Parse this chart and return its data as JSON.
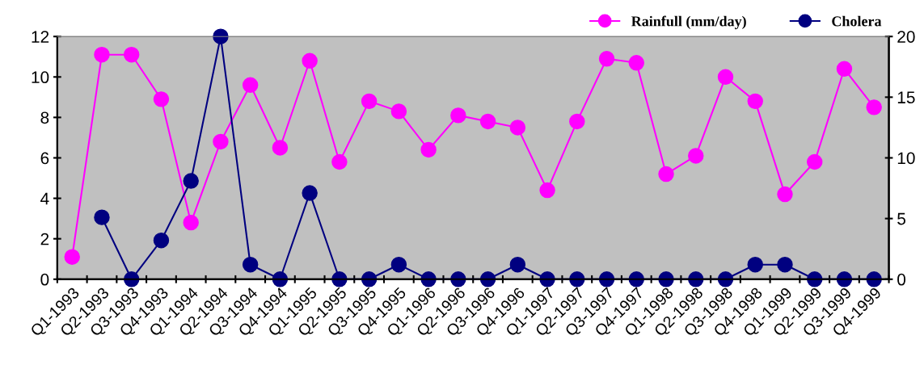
{
  "chart_data": {
    "type": "line",
    "categories": [
      "Q1-1993",
      "Q2-1993",
      "Q3-1993",
      "Q4-1993",
      "Q1-1994",
      "Q2-1994",
      "Q3-1994",
      "Q4-1994",
      "Q1-1995",
      "Q2-1995",
      "Q3-1995",
      "Q4-1995",
      "Q1-1996",
      "Q2-1996",
      "Q3-1996",
      "Q4-1996",
      "Q1-1997",
      "Q2-1997",
      "Q3-1997",
      "Q4-1997",
      "Q1-1998",
      "Q2-1998",
      "Q3-1998",
      "Q4-1998",
      "Q1-1999",
      "Q2-1999",
      "Q3-1999",
      "Q4-1999"
    ],
    "series": [
      {
        "name": "Rainfull (mm/day)",
        "color": "#ff00ff",
        "values": [
          1.1,
          11.1,
          11.1,
          8.9,
          2.8,
          6.8,
          9.6,
          6.5,
          10.8,
          5.8,
          8.8,
          8.3,
          6.4,
          8.1,
          7.8,
          7.5,
          4.4,
          7.8,
          10.9,
          10.7,
          5.2,
          6.1,
          10.0,
          8.8,
          4.2,
          5.8,
          10.4,
          8.5
        ]
      },
      {
        "name": "Cholera",
        "color": "#000080",
        "axis": "y2",
        "values": [
          null,
          5.1,
          0,
          3.2,
          8.1,
          20,
          1.2,
          0,
          7.1,
          0,
          0,
          1.2,
          0,
          0,
          0,
          1.2,
          0,
          0,
          0,
          0,
          0,
          0,
          0,
          1.2,
          1.2,
          0,
          0,
          0
        ]
      }
    ],
    "ylim": [
      0,
      12
    ],
    "yticks": [
      0,
      2,
      4,
      6,
      8,
      10,
      12
    ],
    "y2lim": [
      0,
      20
    ],
    "y2ticks": [
      0,
      5,
      10,
      15,
      20
    ],
    "marker": "circle",
    "line_style": "solid",
    "grid": false,
    "legend": "top right"
  }
}
